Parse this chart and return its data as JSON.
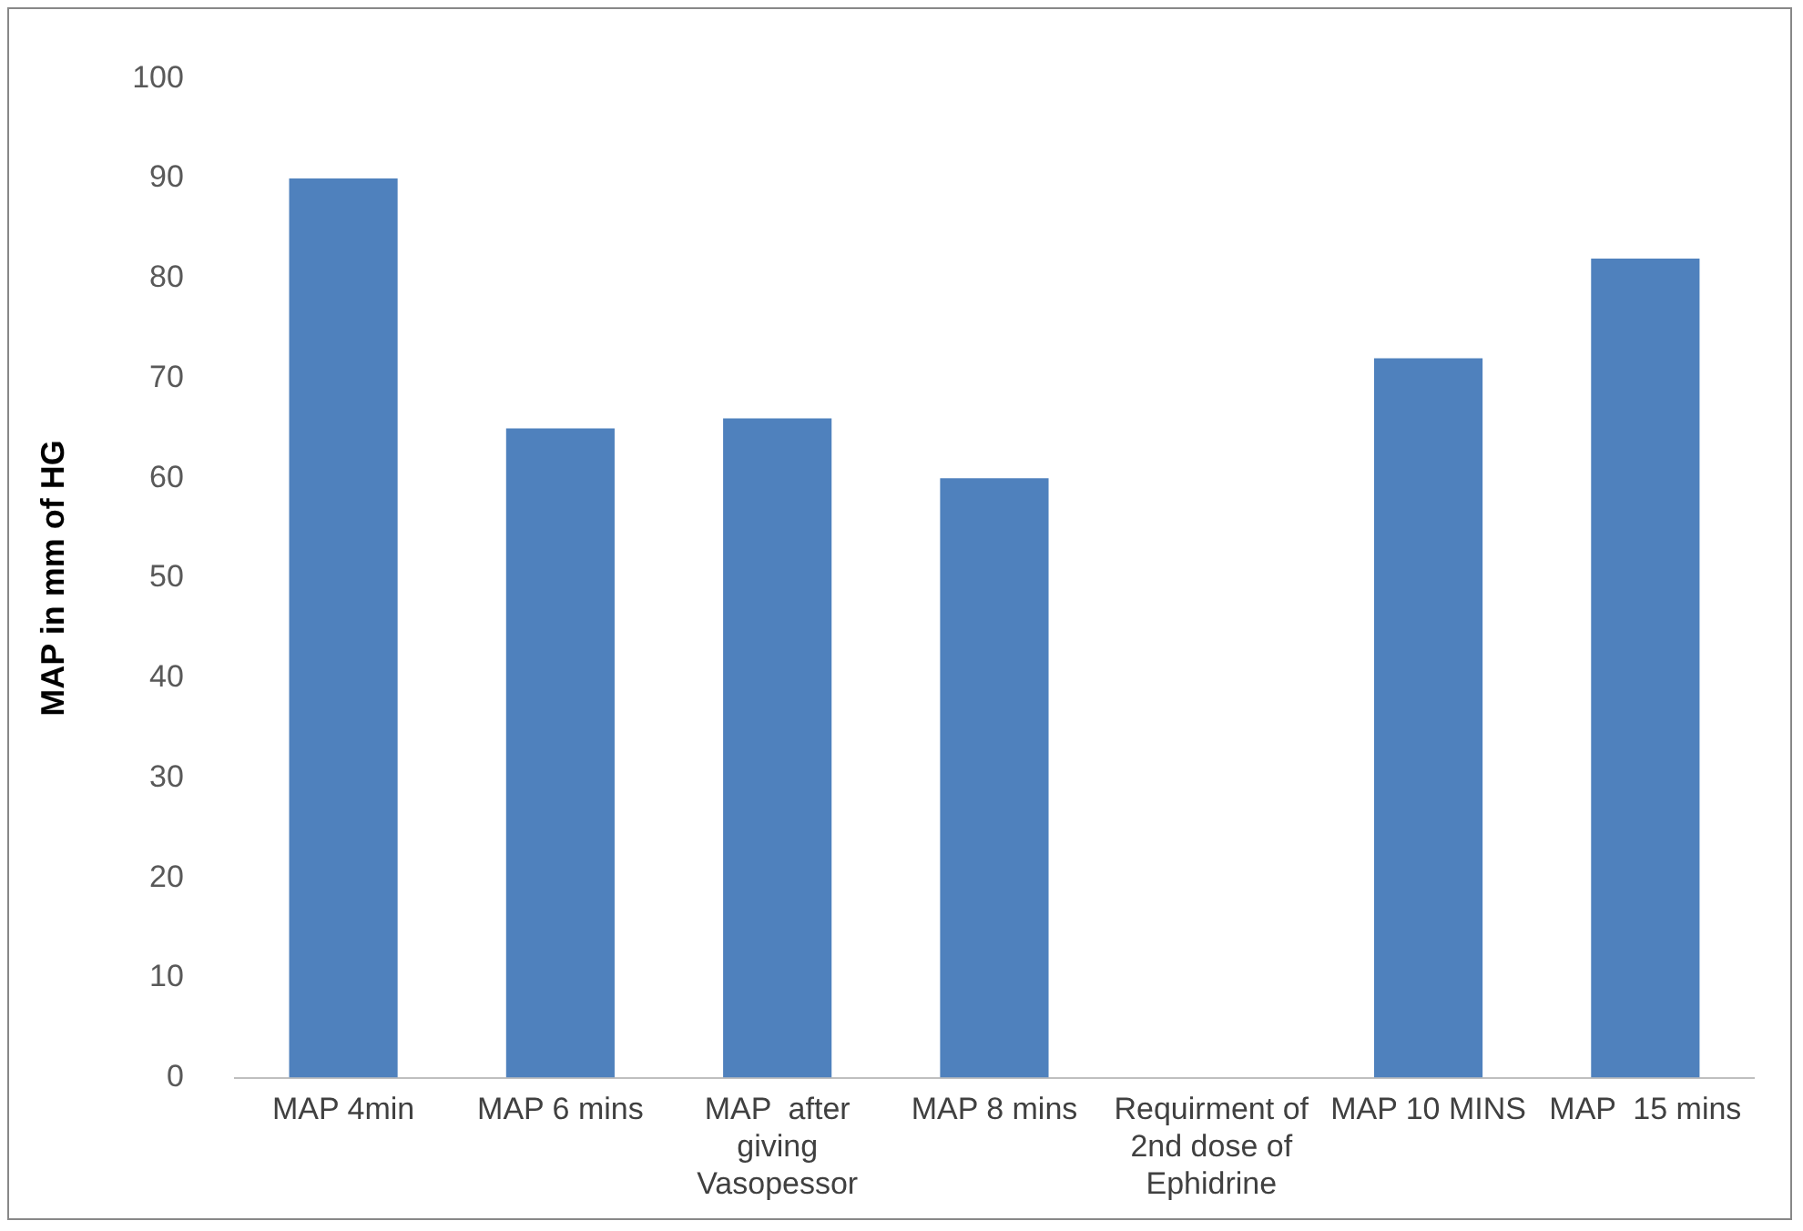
{
  "chart_data": {
    "type": "bar",
    "ylabel": "MAP in mm of HG",
    "categories": [
      "MAP 4min",
      "MAP 6 mins",
      "MAP  after giving Vasopessor",
      "MAP 8 mins",
      "Requirment of 2nd dose of Ephidrine",
      "MAP 10 MINS",
      "MAP  15 mins"
    ],
    "values": [
      90,
      65,
      66,
      60,
      null,
      72,
      82
    ],
    "color": "#4f81bd",
    "ylim": [
      0,
      100
    ],
    "yticks": [
      0,
      10,
      20,
      30,
      40,
      50,
      60,
      70,
      80,
      90,
      100
    ],
    "grid": false,
    "legend": false
  }
}
